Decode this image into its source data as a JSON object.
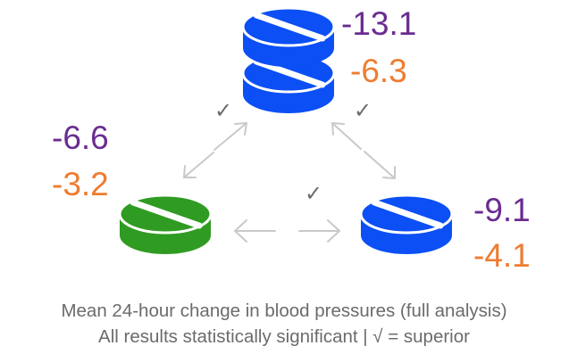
{
  "colors": {
    "systolic": "#6a2c91",
    "diastolic": "#ed7d31",
    "pill_blue": "#0b4ff5",
    "pill_green": "#2f9b22",
    "arrow": "#c9c9c9",
    "check": "#6b6b6b",
    "caption": "#6b6b6b"
  },
  "pills": {
    "combination": {
      "icon": "double-pill-icon",
      "color": "blue",
      "systolic": "-13.1",
      "diastolic": "-6.3"
    },
    "left": {
      "icon": "pill-icon",
      "color": "green",
      "systolic": "-6.6",
      "diastolic": "-3.2"
    },
    "right": {
      "icon": "pill-icon",
      "color": "blue",
      "systolic": "-9.1",
      "diastolic": "-4.1"
    }
  },
  "checks": {
    "top_left": "✓",
    "top_right": "✓",
    "bottom": "✓"
  },
  "caption": {
    "line1": "Mean 24-hour change in blood pressures (full analysis)",
    "line2": "All results statistically significant | √ = superior"
  }
}
